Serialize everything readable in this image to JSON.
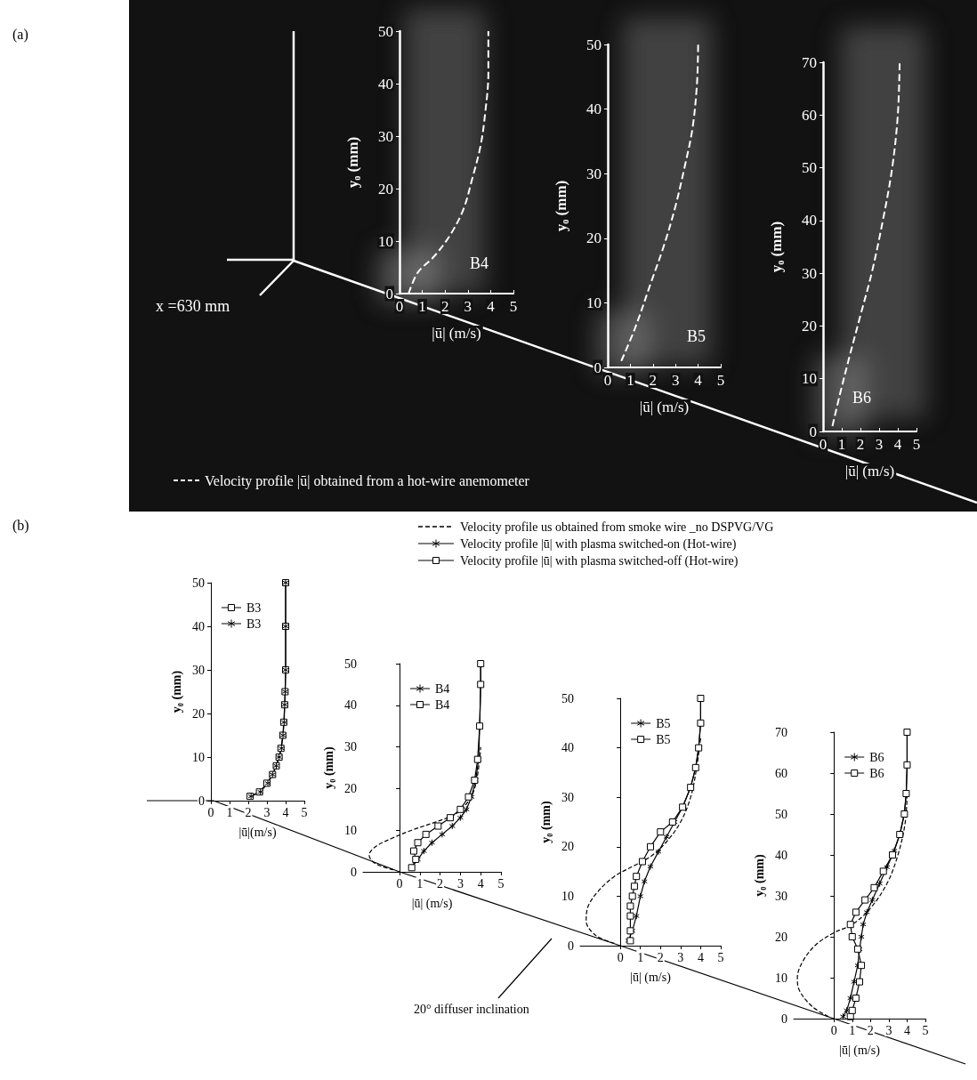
{
  "figure": {
    "panels": [
      "(a)",
      "(b)"
    ],
    "a_annotation": "x =630 mm",
    "a_legend": {
      "text": "Velocity profile |ū| obtained from a hot-wire anemometer",
      "line_style": "dashed",
      "color": "#ffffff"
    },
    "b_legend": [
      {
        "text": "Velocity profile us obtained from smoke wire _no DSPVG/VG",
        "marker": "none",
        "line_style": "dashed",
        "color": "#000000"
      },
      {
        "text": "Velocity profile |ū| with plasma switched-on (Hot-wire)",
        "marker": "asterisk",
        "line_style": "solid",
        "color": "#000000"
      },
      {
        "text": "Velocity profile |ū| with plasma switched-off (Hot-wire)",
        "marker": "square",
        "line_style": "solid",
        "color": "#000000"
      }
    ],
    "b_annotation": "20° diffuser inclination"
  },
  "chart_data": [
    {
      "type": "line",
      "panel": "(a)",
      "title": "B4",
      "x_label": "|ū| (m/s)",
      "y_label": "y₀ (mm)",
      "xlim": [
        0,
        5
      ],
      "xticks": [
        0,
        1,
        2,
        3,
        4,
        5
      ],
      "ylim": [
        0,
        50
      ],
      "yticks": [
        0,
        10,
        20,
        30,
        40,
        50
      ],
      "grid": false,
      "series": [
        {
          "color": "#ffffff",
          "marker": "none",
          "line_style": "dashed",
          "values": [
            [
              0.4,
              0
            ],
            [
              0.8,
              4
            ],
            [
              1.5,
              7
            ],
            [
              2.2,
              11
            ],
            [
              2.8,
              16
            ],
            [
              3.2,
              22
            ],
            [
              3.55,
              28
            ],
            [
              3.75,
              34
            ],
            [
              3.9,
              42
            ],
            [
              3.9,
              50
            ]
          ]
        }
      ]
    },
    {
      "type": "line",
      "panel": "(a)",
      "title": "B5",
      "x_label": "|ū| (m/s)",
      "y_label": "y₀ (mm)",
      "xlim": [
        0,
        5
      ],
      "xticks": [
        0,
        1,
        2,
        3,
        4,
        5
      ],
      "ylim": [
        0,
        50
      ],
      "yticks": [
        0,
        10,
        20,
        30,
        40,
        50
      ],
      "grid": false,
      "series": [
        {
          "color": "#ffffff",
          "marker": "none",
          "line_style": "dashed",
          "values": [
            [
              0.6,
              1
            ],
            [
              1.2,
              6
            ],
            [
              1.9,
              13
            ],
            [
              2.5,
              19
            ],
            [
              3.0,
              25
            ],
            [
              3.4,
              31
            ],
            [
              3.75,
              37
            ],
            [
              3.95,
              44
            ],
            [
              4.0,
              50
            ]
          ]
        }
      ]
    },
    {
      "type": "line",
      "panel": "(a)",
      "title": "B6",
      "x_label": "|ū| (m/s)",
      "y_label": "y₀ (mm)",
      "xlim": [
        0,
        5
      ],
      "xticks": [
        0,
        1,
        2,
        3,
        4,
        5
      ],
      "ylim": [
        0,
        70
      ],
      "yticks": [
        0,
        10,
        20,
        30,
        40,
        50,
        60,
        70
      ],
      "grid": false,
      "series": [
        {
          "color": "#ffffff",
          "marker": "none",
          "line_style": "dashed",
          "values": [
            [
              0.5,
              1
            ],
            [
              0.9,
              7
            ],
            [
              1.4,
              14
            ],
            [
              2.0,
              22
            ],
            [
              2.6,
              30
            ],
            [
              3.2,
              40
            ],
            [
              3.7,
              50
            ],
            [
              4.0,
              60
            ],
            [
              4.1,
              70
            ]
          ]
        }
      ]
    },
    {
      "type": "line",
      "panel": "(b)",
      "x_label": "|ū|(m/s)",
      "y_label": "y₀ (mm)",
      "legend": "upper left",
      "xlim": [
        0,
        5
      ],
      "xticks": [
        0,
        1,
        2,
        3,
        4,
        5
      ],
      "ylim": [
        0,
        50
      ],
      "yticks": [
        0,
        10,
        20,
        30,
        40,
        50
      ],
      "grid": false,
      "series": [
        {
          "name": "B3",
          "color": "#000000",
          "marker": "square",
          "line_style": "solid",
          "values": [
            [
              2.1,
              1
            ],
            [
              2.6,
              2
            ],
            [
              3.0,
              4
            ],
            [
              3.3,
              6
            ],
            [
              3.5,
              8
            ],
            [
              3.65,
              10
            ],
            [
              3.75,
              12
            ],
            [
              3.85,
              15
            ],
            [
              3.9,
              18
            ],
            [
              3.95,
              22
            ],
            [
              3.97,
              25
            ],
            [
              4.0,
              30
            ],
            [
              4.0,
              40
            ],
            [
              4.0,
              50
            ]
          ]
        },
        {
          "name": "B3",
          "color": "#000000",
          "marker": "asterisk",
          "line_style": "solid",
          "values": [
            [
              2.15,
              1
            ],
            [
              2.65,
              2
            ],
            [
              3.05,
              4
            ],
            [
              3.3,
              6
            ],
            [
              3.5,
              8
            ],
            [
              3.65,
              10
            ],
            [
              3.78,
              12
            ],
            [
              3.86,
              15
            ],
            [
              3.92,
              18
            ],
            [
              3.95,
              22
            ],
            [
              3.98,
              25
            ],
            [
              4.0,
              30
            ],
            [
              4.0,
              40
            ],
            [
              4.0,
              50
            ]
          ]
        }
      ]
    },
    {
      "type": "line",
      "panel": "(b)",
      "x_label": "|ū| (m/s)",
      "y_label": "y₀ (mm)",
      "legend": "upper left",
      "xlim": [
        -1.8,
        5
      ],
      "xticks": [
        0,
        1,
        2,
        3,
        4,
        5
      ],
      "ylim": [
        0,
        50
      ],
      "yticks": [
        0,
        10,
        20,
        30,
        40,
        50
      ],
      "grid": false,
      "series": [
        {
          "name": "B4",
          "color": "#000000",
          "marker": "asterisk",
          "line_style": "solid",
          "values": [
            [
              0.6,
              1
            ],
            [
              0.9,
              3
            ],
            [
              1.2,
              5
            ],
            [
              1.6,
              7
            ],
            [
              2.1,
              9
            ],
            [
              2.6,
              11
            ],
            [
              3.0,
              13
            ],
            [
              3.3,
              15
            ],
            [
              3.55,
              18
            ],
            [
              3.75,
              22
            ],
            [
              3.9,
              27
            ],
            [
              3.95,
              35
            ],
            [
              4.0,
              45
            ],
            [
              4.0,
              50
            ]
          ]
        },
        {
          "name": "B4",
          "color": "#000000",
          "marker": "square",
          "line_style": "solid",
          "values": [
            [
              0.6,
              1
            ],
            [
              0.8,
              3
            ],
            [
              0.7,
              5
            ],
            [
              0.9,
              7
            ],
            [
              1.3,
              9
            ],
            [
              1.9,
              11
            ],
            [
              2.5,
              13
            ],
            [
              3.0,
              15
            ],
            [
              3.4,
              18
            ],
            [
              3.7,
              22
            ],
            [
              3.85,
              27
            ],
            [
              3.95,
              35
            ],
            [
              4.0,
              45
            ],
            [
              4.0,
              50
            ]
          ]
        },
        {
          "color": "#000000",
          "marker": "none",
          "line_style": "dashed",
          "values": [
            [
              -0.3,
              0.5
            ],
            [
              -1.2,
              2
            ],
            [
              -1.5,
              4
            ],
            [
              -1.2,
              6
            ],
            [
              -0.4,
              8
            ],
            [
              0.6,
              10
            ],
            [
              1.8,
              12
            ],
            [
              2.8,
              14
            ],
            [
              3.4,
              17
            ],
            [
              3.7,
              20
            ],
            [
              3.9,
              25
            ],
            [
              4.0,
              30
            ]
          ]
        }
      ]
    },
    {
      "type": "line",
      "panel": "(b)",
      "x_label": "|ū| (m/s)",
      "y_label": "y₀ (mm)",
      "legend": "upper left",
      "xlim": [
        -2,
        5
      ],
      "xticks": [
        0,
        1,
        2,
        3,
        4,
        5
      ],
      "ylim": [
        0,
        50
      ],
      "yticks": [
        0,
        10,
        20,
        30,
        40,
        50
      ],
      "grid": false,
      "series": [
        {
          "name": "B5",
          "color": "#000000",
          "marker": "asterisk",
          "line_style": "solid",
          "values": [
            [
              0.4,
              1
            ],
            [
              0.6,
              3
            ],
            [
              0.8,
              6
            ],
            [
              1.0,
              10
            ],
            [
              1.2,
              13
            ],
            [
              1.5,
              16
            ],
            [
              1.9,
              19
            ],
            [
              2.3,
              22
            ],
            [
              2.7,
              25
            ],
            [
              3.1,
              28
            ],
            [
              3.5,
              32
            ],
            [
              3.75,
              36
            ],
            [
              3.9,
              40
            ],
            [
              4.0,
              45
            ],
            [
              4.0,
              50
            ]
          ]
        },
        {
          "name": "B5",
          "color": "#000000",
          "marker": "square",
          "line_style": "solid",
          "values": [
            [
              0.5,
              1
            ],
            [
              0.5,
              3
            ],
            [
              0.5,
              6
            ],
            [
              0.5,
              8
            ],
            [
              0.6,
              10
            ],
            [
              0.7,
              12
            ],
            [
              0.8,
              14
            ],
            [
              1.1,
              17
            ],
            [
              1.5,
              20
            ],
            [
              2.0,
              23
            ],
            [
              2.6,
              25
            ],
            [
              3.1,
              28
            ],
            [
              3.5,
              32
            ],
            [
              3.75,
              36
            ],
            [
              3.9,
              40
            ],
            [
              4.0,
              45
            ],
            [
              4.0,
              50
            ]
          ]
        },
        {
          "color": "#000000",
          "marker": "none",
          "line_style": "dashed",
          "values": [
            [
              -0.3,
              0.5
            ],
            [
              -1.2,
              2
            ],
            [
              -1.7,
              5
            ],
            [
              -1.6,
              8
            ],
            [
              -1.1,
              11
            ],
            [
              -0.3,
              14
            ],
            [
              0.6,
              16
            ],
            [
              1.5,
              18
            ],
            [
              2.3,
              21
            ],
            [
              3.0,
              25
            ],
            [
              3.5,
              30
            ],
            [
              3.8,
              36
            ],
            [
              4.0,
              42
            ]
          ]
        }
      ]
    },
    {
      "type": "line",
      "panel": "(b)",
      "x_label": "|ū| (m/s)",
      "y_label": "y₀ (mm)",
      "legend": "upper left",
      "xlim": [
        -2.2,
        5
      ],
      "xticks": [
        0,
        1,
        2,
        3,
        4,
        5
      ],
      "ylim": [
        0,
        70
      ],
      "yticks": [
        0,
        10,
        20,
        30,
        40,
        50,
        60,
        70
      ],
      "grid": false,
      "series": [
        {
          "name": "B6",
          "color": "#000000",
          "marker": "asterisk",
          "line_style": "solid",
          "values": [
            [
              0.5,
              0.5
            ],
            [
              0.7,
              2
            ],
            [
              0.9,
              5
            ],
            [
              1.1,
              9
            ],
            [
              1.3,
              13
            ],
            [
              1.4,
              17
            ],
            [
              1.5,
              20
            ],
            [
              1.6,
              23
            ],
            [
              1.8,
              26
            ],
            [
              2.1,
              29
            ],
            [
              2.5,
              33
            ],
            [
              2.9,
              37
            ],
            [
              3.3,
              41
            ],
            [
              3.6,
              45
            ],
            [
              3.85,
              50
            ],
            [
              3.95,
              55
            ],
            [
              4.0,
              62
            ],
            [
              4.0,
              70
            ]
          ]
        },
        {
          "name": "B6",
          "color": "#000000",
          "marker": "square",
          "line_style": "solid",
          "values": [
            [
              0.9,
              0.5
            ],
            [
              1.0,
              2
            ],
            [
              1.2,
              5
            ],
            [
              1.4,
              9
            ],
            [
              1.5,
              13
            ],
            [
              1.3,
              17
            ],
            [
              1.0,
              20
            ],
            [
              0.9,
              23
            ],
            [
              1.2,
              26
            ],
            [
              1.7,
              29
            ],
            [
              2.2,
              32
            ],
            [
              2.7,
              36
            ],
            [
              3.2,
              40
            ],
            [
              3.6,
              45
            ],
            [
              3.85,
              50
            ],
            [
              3.95,
              55
            ],
            [
              4.0,
              62
            ],
            [
              4.0,
              70
            ]
          ]
        },
        {
          "color": "#000000",
          "marker": "none",
          "line_style": "dashed",
          "values": [
            [
              -0.3,
              0.5
            ],
            [
              -1.2,
              3
            ],
            [
              -1.9,
              7
            ],
            [
              -2.0,
              10
            ],
            [
              -1.7,
              14
            ],
            [
              -1.0,
              18
            ],
            [
              0.0,
              21
            ],
            [
              1.0,
              23
            ],
            [
              2.0,
              27
            ],
            [
              2.9,
              33
            ],
            [
              3.5,
              40
            ],
            [
              3.9,
              48
            ],
            [
              4.0,
              55
            ]
          ]
        }
      ]
    }
  ]
}
